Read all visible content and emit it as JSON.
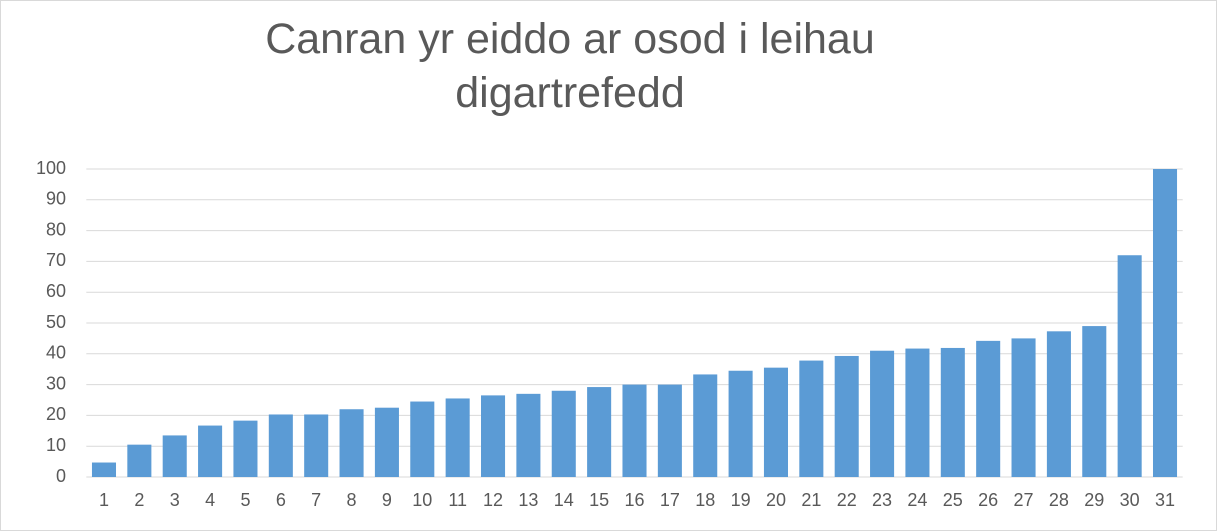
{
  "chart_data": {
    "type": "bar",
    "title": "Canran yr eiddo ar osod i leihau digartrefedd",
    "categories": [
      "1",
      "2",
      "3",
      "4",
      "5",
      "6",
      "7",
      "8",
      "9",
      "10",
      "11",
      "12",
      "13",
      "14",
      "15",
      "16",
      "17",
      "18",
      "19",
      "20",
      "21",
      "22",
      "23",
      "24",
      "25",
      "26",
      "27",
      "28",
      "29",
      "30",
      "31"
    ],
    "values": [
      4.7,
      10.5,
      13.5,
      16.7,
      18.3,
      20.3,
      20.3,
      22,
      22.5,
      24.5,
      25.5,
      26.5,
      27,
      28,
      29.2,
      30,
      30,
      33.3,
      34.5,
      35.5,
      37.8,
      39.3,
      41,
      41.7,
      41.9,
      44.2,
      45,
      47.3,
      49,
      72,
      100
    ],
    "color": "#5b9bd5",
    "ylim": [
      0,
      100
    ],
    "yticks": [
      0,
      10,
      20,
      30,
      40,
      50,
      60,
      70,
      80,
      90,
      100
    ],
    "grid": true
  }
}
